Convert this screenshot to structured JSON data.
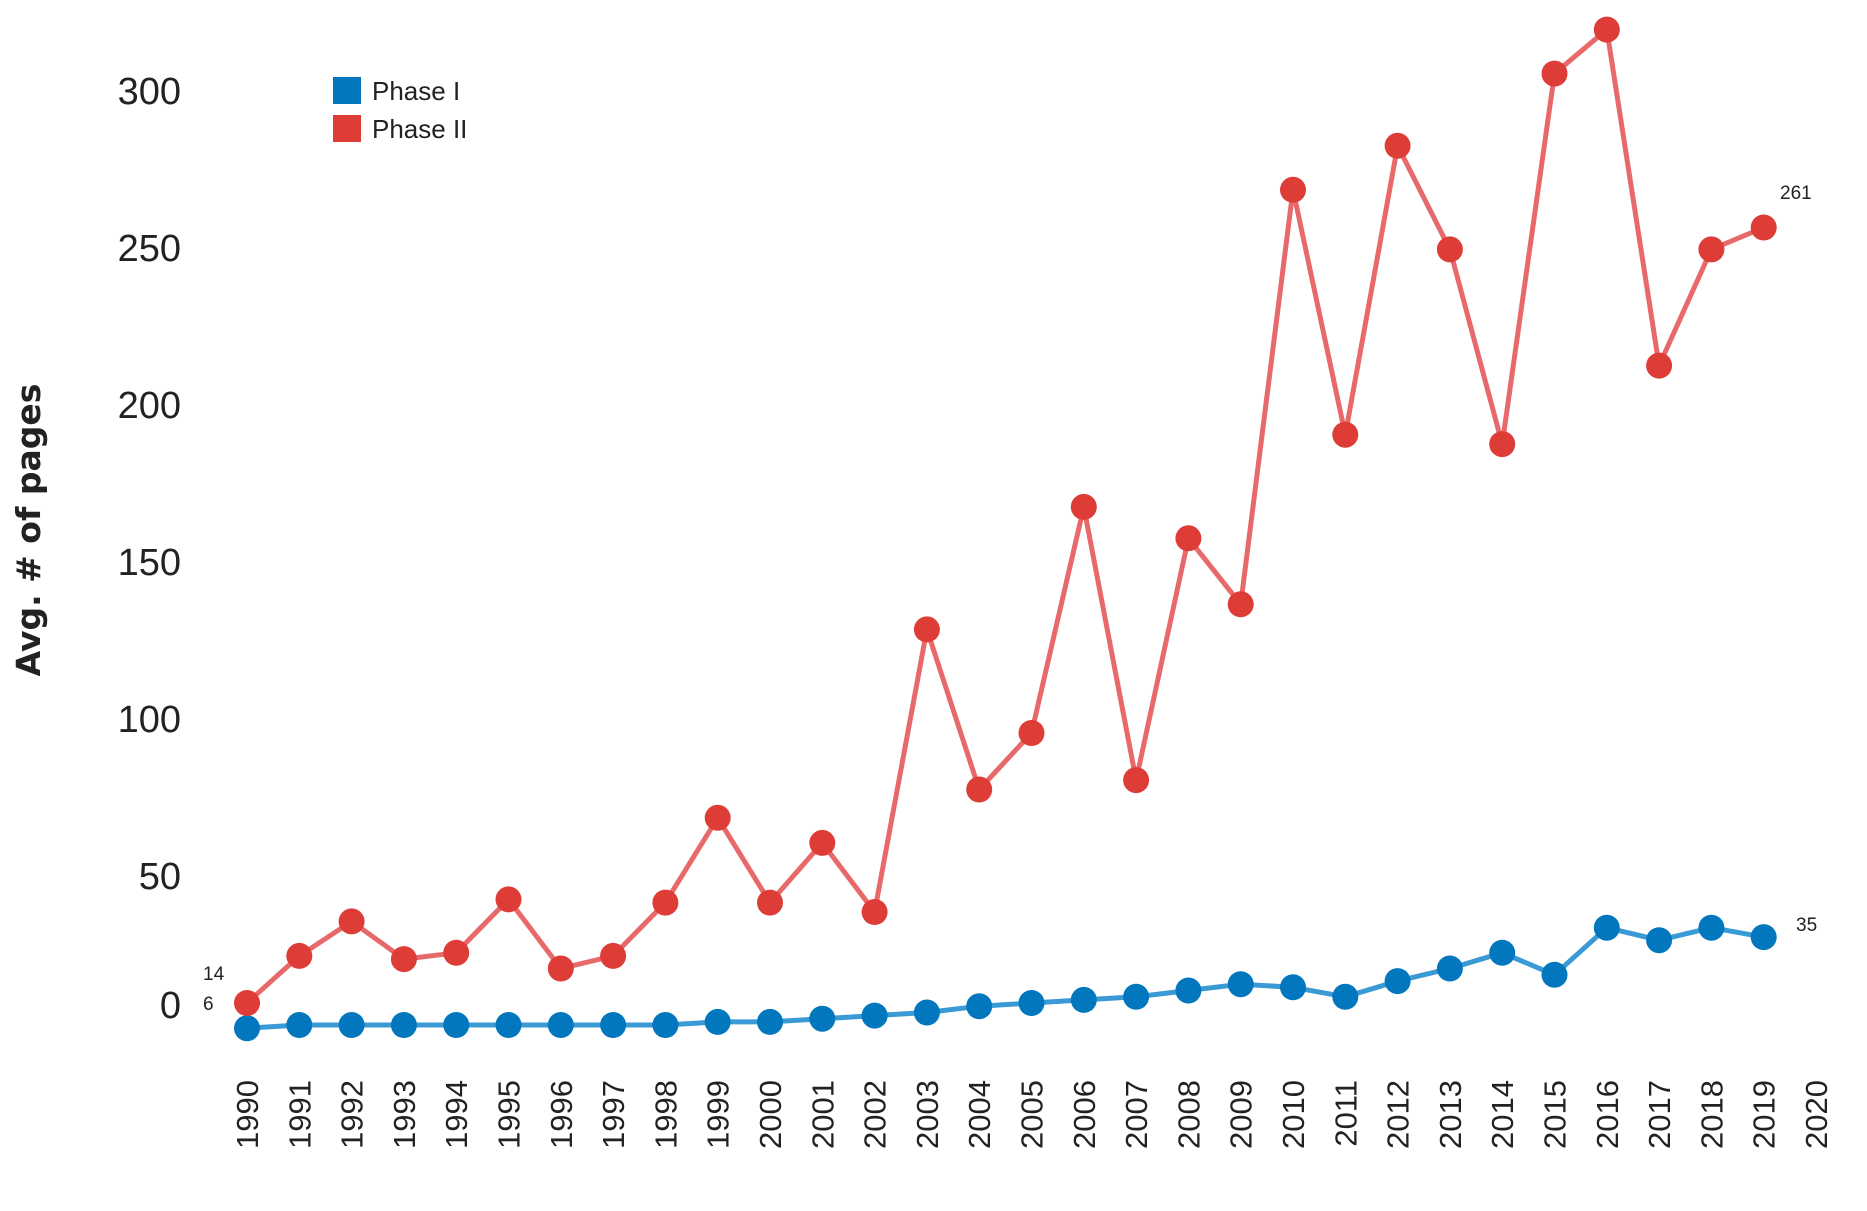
{
  "chart_data": {
    "type": "line",
    "title": "",
    "xlabel": "",
    "ylabel": "Avg. # of pages",
    "x": [
      1990,
      1991,
      1992,
      1993,
      1994,
      1995,
      1996,
      1997,
      1998,
      1999,
      2000,
      2001,
      2002,
      2003,
      2004,
      2005,
      2006,
      2007,
      2008,
      2009,
      2010,
      2011,
      2012,
      2013,
      2014,
      2015,
      2016,
      2017,
      2018,
      2019
    ],
    "x_ticks": [
      "1990",
      "1991",
      "1992",
      "1993",
      "1994",
      "1995",
      "1996",
      "1997",
      "1998",
      "1999",
      "2000",
      "2001",
      "2002",
      "2003",
      "2004",
      "2005",
      "2006",
      "2007",
      "2008",
      "2009",
      "2010",
      "2011",
      "2012",
      "2013",
      "2014",
      "2015",
      "2016",
      "2017",
      "2018",
      "2019",
      "2020"
    ],
    "xlim": [
      1990,
      2020
    ],
    "y_ticks": [
      0,
      50,
      100,
      150,
      200,
      250,
      300
    ],
    "ylim": [
      0,
      320
    ],
    "grid": false,
    "legend_position": "top-left",
    "series": [
      {
        "name": "Phase I",
        "color": "#0277BD",
        "line_color": "#3A9AD6",
        "values": [
          6,
          7,
          7,
          7,
          7,
          7,
          7,
          7,
          7,
          8,
          8,
          9,
          10,
          11,
          13,
          14,
          15,
          16,
          18,
          20,
          19,
          16,
          21,
          25,
          30,
          23,
          38,
          34,
          38,
          35
        ]
      },
      {
        "name": "Phase II",
        "color": "#DE3C36",
        "line_color": "#E8696A",
        "values": [
          14,
          29,
          40,
          28,
          30,
          47,
          25,
          29,
          46,
          73,
          46,
          65,
          43,
          133,
          82,
          100,
          172,
          85,
          162,
          141,
          273,
          195,
          287,
          254,
          192,
          310,
          324,
          217,
          254,
          261
        ]
      }
    ],
    "annotations": [
      {
        "series": "Phase II",
        "x": 1990,
        "text": "14"
      },
      {
        "series": "Phase I",
        "x": 1990,
        "text": "6"
      },
      {
        "series": "Phase II",
        "x": 2019,
        "text": "261"
      },
      {
        "series": "Phase I",
        "x": 2019,
        "text": "35"
      }
    ]
  }
}
